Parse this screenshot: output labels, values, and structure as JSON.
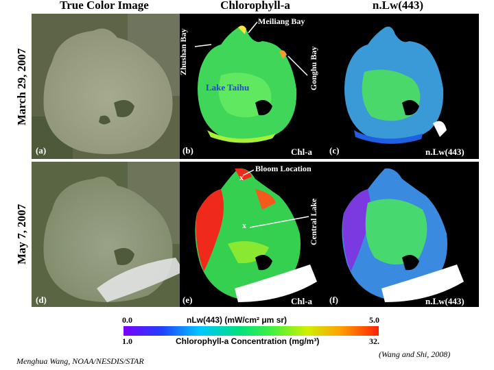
{
  "columns": [
    "True Color Image",
    "Chlorophyll-a",
    "n.Lw(443)"
  ],
  "rows": [
    "March 29, 2007",
    "May 7, 2007"
  ],
  "panels": {
    "a": "(a)",
    "b": "(b)",
    "c": "(c)",
    "d": "(d)",
    "e": "(e)",
    "f": "(f)",
    "b_product": "Chl-a",
    "c_product": "n.Lw(443)",
    "e_product": "Chl-a",
    "f_product": "n.Lw(443)"
  },
  "annotations": {
    "meiliang": "Meiliang Bay",
    "zhushan": "Zhushan Bay",
    "gonghu": "Gonghu Bay",
    "lake": "Lake Taihu",
    "bloom": "Bloom Location",
    "central": "Central Lake",
    "x1": "x",
    "x2": "x"
  },
  "colorbar": {
    "top_min": "0.0",
    "top_label": "nLw(443) (mW/cm² μm sr)",
    "top_max": "5.0",
    "bottom_min": "1.0",
    "bottom_label": "Chlorophyll-a Concentration (mg/m³)",
    "bottom_max": "32."
  },
  "footer": {
    "author": "Menghua Wang, NOAA/NESDIS/STAR",
    "citation": "(Wang and Shi, 2008)"
  }
}
